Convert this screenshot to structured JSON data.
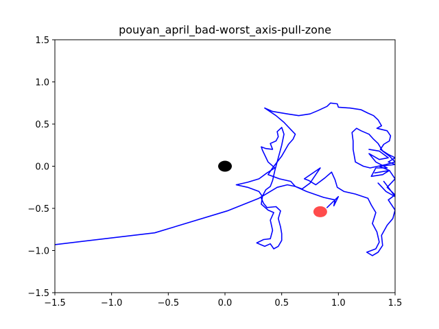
{
  "chart_data": {
    "type": "line",
    "title": "pouyan_april_bad-worst_axis-pull-zone",
    "xlabel": "",
    "ylabel": "",
    "xlim": [
      -1.5,
      1.5
    ],
    "ylim": [
      -1.5,
      1.5
    ],
    "xticks": [
      -1.5,
      -1.0,
      -0.5,
      0.0,
      0.5,
      1.0,
      1.5
    ],
    "xtick_labels": [
      "−1.5",
      "−1.0",
      "−0.5",
      "0.0",
      "0.5",
      "1.0",
      "1.5"
    ],
    "yticks": [
      1.5,
      1.0,
      0.5,
      0.0,
      -0.5,
      -1.0,
      -1.5
    ],
    "ytick_labels": [
      "1.5",
      "1.0",
      "0.5",
      "0.0",
      "−0.5",
      "−1.0",
      "−1.5"
    ],
    "grid": false,
    "series": [
      {
        "color": "#0000ff",
        "points": [
          [
            -1.5,
            -0.93
          ],
          [
            -0.62,
            -0.79
          ],
          [
            0.02,
            -0.53
          ],
          [
            0.3,
            -0.38
          ],
          [
            0.46,
            -0.25
          ],
          [
            0.55,
            -0.22
          ],
          [
            0.62,
            -0.24
          ],
          [
            0.58,
            -0.18
          ],
          [
            0.48,
            -0.15
          ],
          [
            0.38,
            -0.1
          ],
          [
            0.42,
            -0.02
          ],
          [
            0.5,
            0.12
          ],
          [
            0.56,
            0.26
          ],
          [
            0.6,
            0.32
          ],
          [
            0.62,
            0.38
          ],
          [
            0.57,
            0.45
          ],
          [
            0.52,
            0.52
          ],
          [
            0.45,
            0.6
          ],
          [
            0.35,
            0.69
          ],
          [
            0.42,
            0.65
          ],
          [
            0.55,
            0.62
          ],
          [
            0.65,
            0.6
          ],
          [
            0.75,
            0.62
          ],
          [
            0.82,
            0.66
          ],
          [
            0.9,
            0.71
          ],
          [
            0.93,
            0.75
          ],
          [
            0.99,
            0.74
          ],
          [
            1.0,
            0.7
          ],
          [
            1.1,
            0.69
          ],
          [
            1.2,
            0.67
          ],
          [
            1.26,
            0.63
          ],
          [
            1.31,
            0.6
          ],
          [
            1.35,
            0.55
          ],
          [
            1.38,
            0.48
          ],
          [
            1.34,
            0.45
          ],
          [
            1.43,
            0.42
          ],
          [
            1.46,
            0.36
          ],
          [
            1.45,
            0.3
          ],
          [
            1.4,
            0.26
          ],
          [
            1.37,
            0.2
          ],
          [
            1.44,
            0.14
          ],
          [
            1.5,
            0.1
          ],
          [
            1.44,
            0.05
          ],
          [
            1.5,
            0.02
          ],
          [
            1.36,
            0.0
          ],
          [
            1.45,
            -0.05
          ],
          [
            1.5,
            -0.15
          ],
          [
            1.43,
            -0.25
          ],
          [
            1.5,
            -0.34
          ],
          [
            1.44,
            -0.4
          ],
          [
            1.5,
            -0.52
          ],
          [
            1.48,
            -0.62
          ],
          [
            1.43,
            -0.7
          ],
          [
            1.38,
            -0.82
          ],
          [
            1.39,
            -0.94
          ],
          [
            1.35,
            -1.02
          ],
          [
            1.3,
            -1.06
          ],
          [
            1.25,
            -1.02
          ],
          [
            1.33,
            -0.98
          ],
          [
            1.36,
            -0.9
          ],
          [
            1.34,
            -0.78
          ],
          [
            1.3,
            -0.68
          ],
          [
            1.33,
            -0.55
          ],
          [
            1.29,
            -0.46
          ],
          [
            1.26,
            -0.38
          ],
          [
            1.15,
            -0.33
          ],
          [
            1.05,
            -0.3
          ],
          [
            0.99,
            -0.25
          ],
          [
            0.97,
            -0.16
          ],
          [
            0.94,
            -0.07
          ],
          [
            0.88,
            -0.14
          ],
          [
            0.8,
            -0.22
          ],
          [
            0.74,
            -0.17
          ],
          [
            0.7,
            -0.15
          ],
          [
            0.84,
            -0.02
          ],
          [
            0.75,
            -0.2
          ],
          [
            0.68,
            -0.27
          ],
          [
            0.62,
            -0.24
          ],
          [
            0.72,
            -0.3
          ],
          [
            0.87,
            -0.37
          ],
          [
            0.97,
            -0.4
          ],
          [
            0.96,
            -0.47
          ],
          [
            1.0,
            -0.36
          ],
          [
            0.9,
            -0.49
          ]
        ]
      },
      {
        "color": "#0000ff",
        "points": [
          [
            0.1,
            -0.22
          ],
          [
            0.2,
            -0.19
          ],
          [
            0.3,
            -0.15
          ],
          [
            0.37,
            -0.08
          ],
          [
            0.44,
            -0.02
          ],
          [
            0.38,
            0.05
          ],
          [
            0.33,
            0.19
          ],
          [
            0.32,
            0.23
          ],
          [
            0.36,
            0.21
          ],
          [
            0.42,
            0.2
          ],
          [
            0.4,
            0.27
          ],
          [
            0.45,
            0.3
          ],
          [
            0.47,
            0.35
          ],
          [
            0.46,
            0.41
          ],
          [
            0.5,
            0.46
          ],
          [
            0.52,
            0.38
          ],
          [
            0.5,
            0.25
          ],
          [
            0.47,
            0.1
          ],
          [
            0.44,
            -0.05
          ],
          [
            0.42,
            -0.17
          ],
          [
            0.4,
            -0.24
          ],
          [
            0.36,
            -0.28
          ],
          [
            0.32,
            -0.38
          ],
          [
            0.34,
            -0.44
          ],
          [
            0.37,
            -0.49
          ],
          [
            0.45,
            -0.48
          ],
          [
            0.49,
            -0.53
          ],
          [
            0.47,
            -0.62
          ],
          [
            0.49,
            -0.72
          ],
          [
            0.5,
            -0.8
          ],
          [
            0.5,
            -0.88
          ],
          [
            0.47,
            -0.95
          ],
          [
            0.43,
            -0.98
          ],
          [
            0.4,
            -0.92
          ],
          [
            0.35,
            -0.95
          ],
          [
            0.28,
            -0.91
          ],
          [
            0.34,
            -0.87
          ],
          [
            0.4,
            -0.86
          ],
          [
            0.42,
            -0.76
          ],
          [
            0.4,
            -0.64
          ],
          [
            0.43,
            -0.55
          ],
          [
            0.38,
            -0.52
          ],
          [
            0.32,
            -0.45
          ],
          [
            0.33,
            -0.36
          ],
          [
            0.3,
            -0.3
          ],
          [
            0.2,
            -0.25
          ],
          [
            0.1,
            -0.22
          ]
        ]
      },
      {
        "color": "#0000ff",
        "points": [
          [
            1.13,
            0.2
          ],
          [
            1.13,
            0.3
          ],
          [
            1.12,
            0.4
          ],
          [
            1.16,
            0.45
          ],
          [
            1.2,
            0.42
          ],
          [
            1.27,
            0.38
          ],
          [
            1.31,
            0.32
          ],
          [
            1.35,
            0.27
          ],
          [
            1.39,
            0.18
          ],
          [
            1.45,
            0.12
          ],
          [
            1.5,
            0.05
          ],
          [
            1.42,
            0.02
          ],
          [
            1.35,
            0.0
          ],
          [
            1.28,
            -0.02
          ],
          [
            1.22,
            0.0
          ],
          [
            1.15,
            0.05
          ],
          [
            1.13,
            0.2
          ]
        ]
      },
      {
        "color": "#0000ff",
        "points": [
          [
            1.27,
            0.2
          ],
          [
            1.36,
            0.18
          ],
          [
            1.44,
            0.1
          ],
          [
            1.36,
            0.08
          ],
          [
            1.27,
            0.15
          ],
          [
            1.33,
            0.05
          ],
          [
            1.43,
            -0.02
          ],
          [
            1.33,
            -0.02
          ],
          [
            1.29,
            -0.12
          ],
          [
            1.39,
            -0.1
          ],
          [
            1.45,
            -0.05
          ],
          [
            1.32,
            -0.08
          ]
        ]
      },
      {
        "color": "#0000ff",
        "points": [
          [
            1.35,
            -0.2
          ],
          [
            1.42,
            -0.3
          ],
          [
            1.5,
            -0.36
          ],
          [
            1.44,
            -0.25
          ],
          [
            1.4,
            -0.18
          ]
        ]
      }
    ],
    "markers": [
      {
        "x": 0.0,
        "y": 0.0,
        "color": "#000000",
        "alpha": 1.0
      },
      {
        "x": 0.84,
        "y": -0.54,
        "color": "#ff0000",
        "alpha": 0.7
      }
    ]
  }
}
